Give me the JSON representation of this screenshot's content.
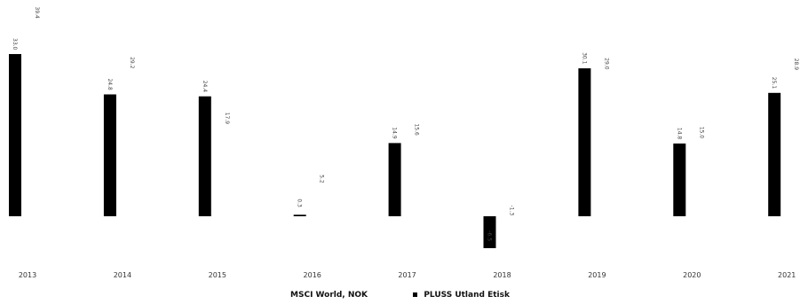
{
  "chart_data": {
    "type": "bar",
    "categories": [
      "2013",
      "2014",
      "2015",
      "2016",
      "2017",
      "2018",
      "2019",
      "2020",
      "2021"
    ],
    "series": [
      {
        "name": "MSCI World, NOK",
        "values": [
          33.0,
          24.8,
          24.4,
          0.3,
          14.9,
          -6.5,
          30.1,
          14.8,
          25.1
        ],
        "data_labels": [
          "33.0",
          "24.8",
          "24.4",
          "0.3",
          "14.9",
          "-6.5",
          "30.1",
          "14.8",
          "25.1"
        ],
        "color": "#000000"
      },
      {
        "name": "PLUSS Utland Etisk",
        "values": [
          39.4,
          29.2,
          17.9,
          5.2,
          15.6,
          -1.3,
          29.0,
          15.0,
          28.9
        ],
        "data_labels": [
          "39.4",
          "29.2",
          "17.9",
          "5.2",
          "15.6",
          "-1.3",
          "29.0",
          "15.0",
          "28.9"
        ],
        "color": "#ffffff"
      }
    ],
    "title": "",
    "xlabel": "",
    "ylabel": "",
    "ylim": [
      -10,
      45
    ],
    "grid": false,
    "legend": "bottom-center"
  }
}
